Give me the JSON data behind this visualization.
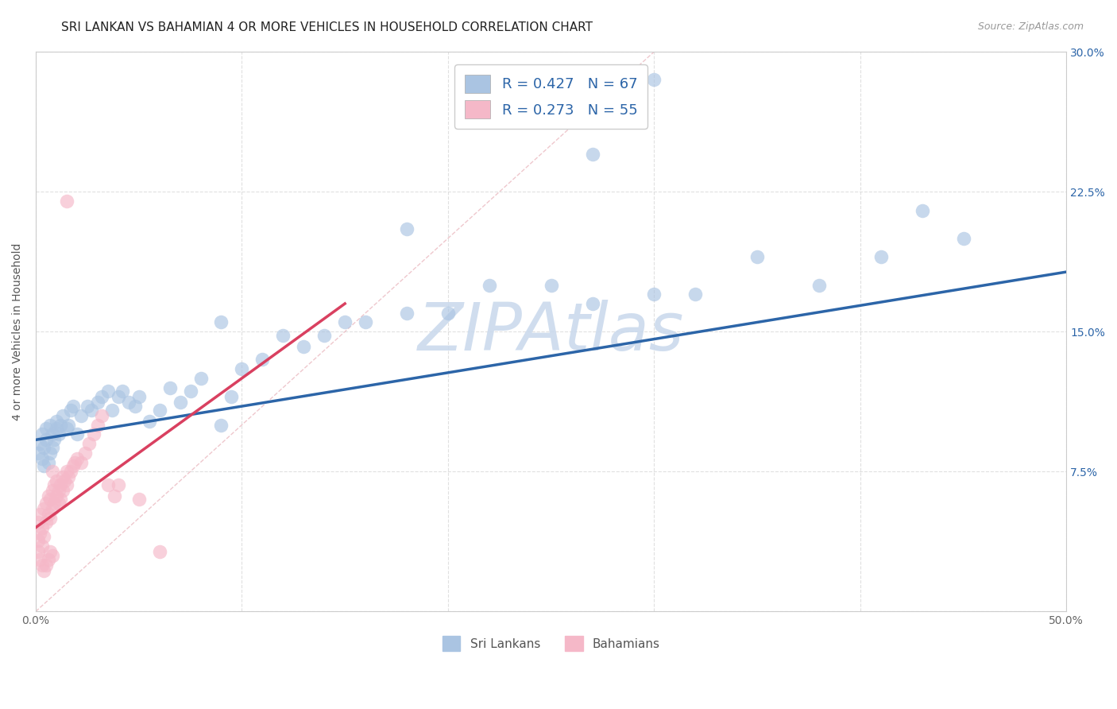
{
  "title": "SRI LANKAN VS BAHAMIAN 4 OR MORE VEHICLES IN HOUSEHOLD CORRELATION CHART",
  "source": "Source: ZipAtlas.com",
  "ylabel": "4 or more Vehicles in Household",
  "xlim": [
    0.0,
    0.5
  ],
  "ylim": [
    0.0,
    0.3
  ],
  "xticks": [
    0.0,
    0.1,
    0.2,
    0.3,
    0.4,
    0.5
  ],
  "yticks": [
    0.0,
    0.075,
    0.15,
    0.225,
    0.3
  ],
  "xticklabels": [
    "0.0%",
    "",
    "",
    "",
    "",
    "50.0%"
  ],
  "yticklabels_right": [
    "",
    "7.5%",
    "15.0%",
    "22.5%",
    "30.0%"
  ],
  "sri_lankan_color": "#aac4e2",
  "bahamian_color": "#f5b8c8",
  "sri_lankan_line_color": "#2c65a8",
  "bahamian_line_color": "#d94060",
  "ref_line_color": "#cccccc",
  "legend_box_color_blue": "#aac4e2",
  "legend_box_color_pink": "#f5b8c8",
  "R_sri": 0.427,
  "N_sri": 67,
  "R_bah": 0.273,
  "N_bah": 55,
  "watermark": "ZIPAtlas",
  "watermark_color": "#c8d8ec",
  "background_color": "#ffffff",
  "grid_color": "#dddddd",
  "title_fontsize": 11,
  "axis_label_fontsize": 10,
  "tick_fontsize": 10,
  "legend_text_color": "#2c65a8",
  "sri_lankans_x": [
    0.001,
    0.002,
    0.003,
    0.003,
    0.004,
    0.004,
    0.005,
    0.005,
    0.006,
    0.007,
    0.007,
    0.008,
    0.008,
    0.009,
    0.01,
    0.01,
    0.011,
    0.012,
    0.013,
    0.015,
    0.016,
    0.017,
    0.018,
    0.02,
    0.022,
    0.025,
    0.027,
    0.03,
    0.032,
    0.035,
    0.037,
    0.04,
    0.042,
    0.045,
    0.048,
    0.05,
    0.055,
    0.06,
    0.065,
    0.07,
    0.075,
    0.08,
    0.09,
    0.095,
    0.1,
    0.11,
    0.12,
    0.13,
    0.14,
    0.15,
    0.16,
    0.18,
    0.2,
    0.22,
    0.25,
    0.27,
    0.3,
    0.32,
    0.35,
    0.38,
    0.41,
    0.43,
    0.45,
    0.27,
    0.3,
    0.18,
    0.09
  ],
  "sri_lankans_y": [
    0.085,
    0.09,
    0.082,
    0.095,
    0.088,
    0.078,
    0.092,
    0.098,
    0.08,
    0.085,
    0.1,
    0.095,
    0.088,
    0.092,
    0.098,
    0.102,
    0.095,
    0.1,
    0.105,
    0.098,
    0.1,
    0.108,
    0.11,
    0.095,
    0.105,
    0.11,
    0.108,
    0.112,
    0.115,
    0.118,
    0.108,
    0.115,
    0.118,
    0.112,
    0.11,
    0.115,
    0.102,
    0.108,
    0.12,
    0.112,
    0.118,
    0.125,
    0.1,
    0.115,
    0.13,
    0.135,
    0.148,
    0.142,
    0.148,
    0.155,
    0.155,
    0.16,
    0.16,
    0.175,
    0.175,
    0.165,
    0.17,
    0.17,
    0.19,
    0.175,
    0.19,
    0.215,
    0.2,
    0.245,
    0.285,
    0.205,
    0.155
  ],
  "bahamians_x": [
    0.001,
    0.001,
    0.002,
    0.002,
    0.003,
    0.003,
    0.004,
    0.004,
    0.005,
    0.005,
    0.006,
    0.006,
    0.007,
    0.007,
    0.008,
    0.008,
    0.009,
    0.009,
    0.01,
    0.01,
    0.011,
    0.011,
    0.012,
    0.012,
    0.013,
    0.013,
    0.014,
    0.015,
    0.015,
    0.016,
    0.017,
    0.018,
    0.019,
    0.02,
    0.022,
    0.024,
    0.026,
    0.028,
    0.03,
    0.032,
    0.001,
    0.002,
    0.003,
    0.004,
    0.005,
    0.006,
    0.007,
    0.008,
    0.035,
    0.038,
    0.04,
    0.05,
    0.06,
    0.015,
    0.008
  ],
  "bahamians_y": [
    0.048,
    0.038,
    0.052,
    0.042,
    0.045,
    0.035,
    0.04,
    0.055,
    0.058,
    0.048,
    0.062,
    0.052,
    0.06,
    0.05,
    0.065,
    0.055,
    0.068,
    0.058,
    0.062,
    0.07,
    0.058,
    0.065,
    0.06,
    0.068,
    0.065,
    0.072,
    0.07,
    0.068,
    0.075,
    0.072,
    0.075,
    0.078,
    0.08,
    0.082,
    0.08,
    0.085,
    0.09,
    0.095,
    0.1,
    0.105,
    0.032,
    0.028,
    0.025,
    0.022,
    0.025,
    0.028,
    0.032,
    0.03,
    0.068,
    0.062,
    0.068,
    0.06,
    0.032,
    0.22,
    0.075
  ],
  "sri_line_x0": 0.0,
  "sri_line_y0": 0.092,
  "sri_line_x1": 0.5,
  "sri_line_y1": 0.182,
  "bah_line_x0": 0.0,
  "bah_line_y0": 0.045,
  "bah_line_x1": 0.15,
  "bah_line_y1": 0.165
}
